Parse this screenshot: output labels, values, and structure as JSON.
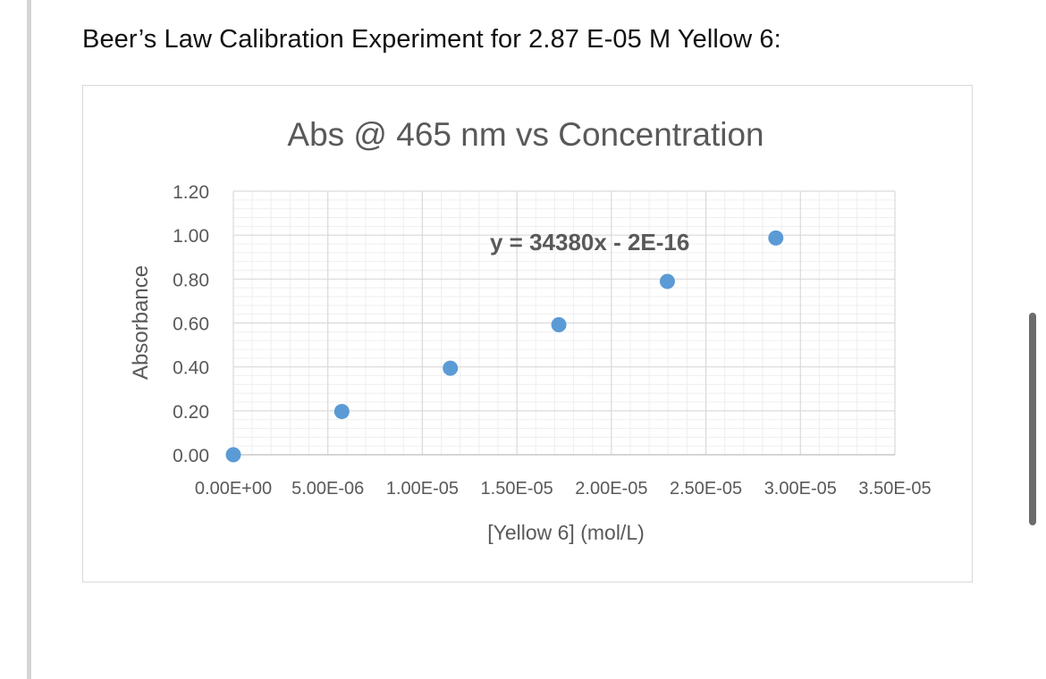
{
  "page": {
    "heading": "Beer’s Law Calibration Experiment for 2.87 E-05 M Yellow 6:"
  },
  "chart_data": {
    "type": "scatter",
    "title": "Abs @ 465 nm vs Concentration",
    "xlabel": "[Yellow 6] (mol/L)",
    "ylabel": "Absorbance",
    "xlim": [
      0,
      3.5e-05
    ],
    "ylim": [
      0,
      1.2
    ],
    "x_ticks": [
      0,
      5e-06,
      1e-05,
      1.5e-05,
      2e-05,
      2.5e-05,
      3e-05,
      3.5e-05
    ],
    "x_tick_labels": [
      "0.00E+00",
      "5.00E-06",
      "1.00E-05",
      "1.50E-05",
      "2.00E-05",
      "2.50E-05",
      "3.00E-05",
      "3.50E-05"
    ],
    "y_ticks": [
      0,
      0.2,
      0.4,
      0.6,
      0.8,
      1.0,
      1.2
    ],
    "y_tick_labels": [
      "0.00",
      "0.20",
      "0.40",
      "0.60",
      "0.80",
      "1.00",
      "1.20"
    ],
    "grid": true,
    "series": [
      {
        "name": "Absorbance",
        "color": "#5b9bd5",
        "x": [
          0,
          5.74e-06,
          1.148e-05,
          1.722e-05,
          2.296e-05,
          2.87e-05
        ],
        "y": [
          0,
          0.197,
          0.394,
          0.592,
          0.789,
          0.987
        ]
      }
    ],
    "annotations": [
      {
        "text": "y = 34380x - 2E-16"
      }
    ]
  }
}
